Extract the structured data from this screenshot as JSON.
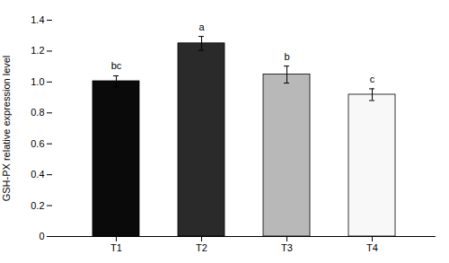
{
  "chart_data": {
    "type": "bar",
    "categories": [
      "T1",
      "T2",
      "T3",
      "T4"
    ],
    "values": [
      1.005,
      1.25,
      1.048,
      0.918
    ],
    "errors": [
      0.035,
      0.045,
      0.055,
      0.038
    ],
    "annotations": [
      "bc",
      "a",
      "b",
      "c"
    ],
    "colors": [
      "#0a0a0a",
      "#2a2a2a",
      "#b8b8b8",
      "#f8f8f8"
    ],
    "ylabel": "GSH-PX relative expression level",
    "ylim": [
      0,
      1.4
    ],
    "yticks": [
      0,
      0.2,
      0.4,
      0.6,
      0.8,
      {
        "value": 1.0,
        "label": "1.0"
      },
      1.2,
      1.4
    ],
    "grid": false
  }
}
